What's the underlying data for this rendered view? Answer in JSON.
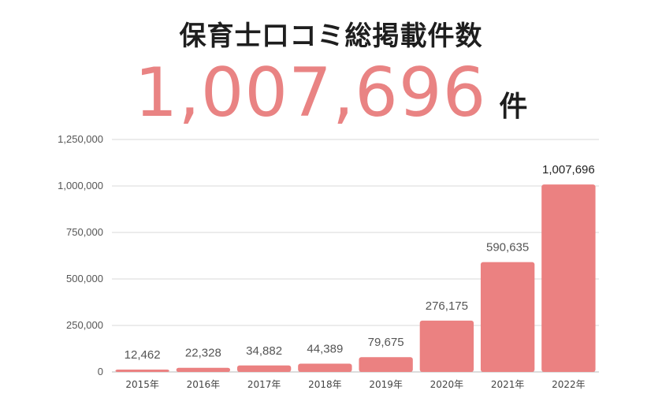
{
  "header": {
    "title": "保育士口コミ総掲載件数",
    "total": "1,007,696",
    "unit": "件"
  },
  "chart_data": {
    "type": "bar",
    "categories": [
      "2015年",
      "2016年",
      "2017年",
      "2018年",
      "2019年",
      "2020年",
      "2021年",
      "2022年"
    ],
    "values": [
      12462,
      22328,
      34882,
      44389,
      79675,
      276175,
      590635,
      1007696
    ],
    "value_labels": [
      "12,462",
      "22,328",
      "34,882",
      "44,389",
      "79,675",
      "276,175",
      "590,635",
      "1,007,696"
    ],
    "y_ticks": [
      0,
      250000,
      500000,
      750000,
      1000000,
      1250000
    ],
    "y_tick_labels": [
      "0",
      "250,000",
      "500,000",
      "750,000",
      "1,000,000",
      "1,250,000"
    ],
    "ylim": [
      0,
      1250000
    ],
    "grid": true,
    "legend": "none",
    "bar_color": "#eb8181"
  }
}
